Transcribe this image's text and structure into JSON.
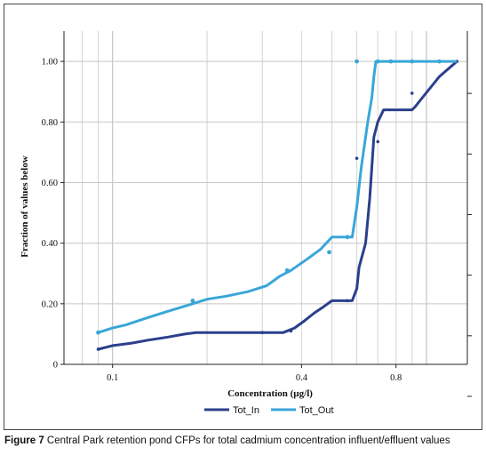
{
  "caption": {
    "label": "Figure 7",
    "text": " Central Park retention pond CFPs for total cadmium concentration influent/effluent values"
  },
  "chart_data": {
    "type": "line",
    "xlabel": "Concentration (µg/l)",
    "ylabel": "Fraction of values below",
    "x_scale": "log",
    "xlim": [
      0.07,
      1.35
    ],
    "ylim": [
      0,
      1.1
    ],
    "x_ticks": [
      {
        "value": 0.1,
        "label": "0.1"
      },
      {
        "value": 0.4,
        "label": "0.4"
      },
      {
        "value": 0.8,
        "label": "0.8"
      }
    ],
    "y_ticks": [
      {
        "value": 0,
        "label": "0"
      },
      {
        "value": 0.2,
        "label": "0.20"
      },
      {
        "value": 0.4,
        "label": "0.40"
      },
      {
        "value": 0.6,
        "label": "0.60"
      },
      {
        "value": 0.8,
        "label": "0.80"
      },
      {
        "value": 1.0,
        "label": "1.00"
      }
    ],
    "grid": true,
    "legend": "bottom",
    "series": [
      {
        "name": "Tot_In",
        "color": "#2b3f8c",
        "line": [
          [
            0.09,
            0.05
          ],
          [
            0.1,
            0.062
          ],
          [
            0.115,
            0.07
          ],
          [
            0.13,
            0.08
          ],
          [
            0.15,
            0.09
          ],
          [
            0.17,
            0.1
          ],
          [
            0.185,
            0.105
          ],
          [
            0.25,
            0.105
          ],
          [
            0.3,
            0.105
          ],
          [
            0.35,
            0.105
          ],
          [
            0.38,
            0.12
          ],
          [
            0.41,
            0.145
          ],
          [
            0.44,
            0.17
          ],
          [
            0.47,
            0.19
          ],
          [
            0.5,
            0.21
          ],
          [
            0.58,
            0.21
          ],
          [
            0.6,
            0.25
          ],
          [
            0.61,
            0.32
          ],
          [
            0.64,
            0.4
          ],
          [
            0.66,
            0.55
          ],
          [
            0.67,
            0.65
          ],
          [
            0.68,
            0.75
          ],
          [
            0.7,
            0.8
          ],
          [
            0.73,
            0.84
          ],
          [
            0.9,
            0.84
          ],
          [
            0.92,
            0.85
          ],
          [
            0.97,
            0.88
          ],
          [
            1.1,
            0.95
          ],
          [
            1.25,
            1.0
          ]
        ],
        "points": [
          [
            0.09,
            0.05
          ],
          [
            0.3,
            0.105
          ],
          [
            0.37,
            0.11
          ],
          [
            0.6,
            0.68
          ],
          [
            0.7,
            0.735
          ],
          [
            0.9,
            0.895
          ],
          [
            1.25,
            1.0
          ],
          [
            0.56,
            0.21
          ]
        ]
      },
      {
        "name": "Tot_Out",
        "color": "#3aa6d8",
        "line": [
          [
            0.09,
            0.105
          ],
          [
            0.1,
            0.12
          ],
          [
            0.11,
            0.13
          ],
          [
            0.13,
            0.155
          ],
          [
            0.15,
            0.175
          ],
          [
            0.18,
            0.2
          ],
          [
            0.2,
            0.215
          ],
          [
            0.23,
            0.225
          ],
          [
            0.27,
            0.24
          ],
          [
            0.31,
            0.26
          ],
          [
            0.34,
            0.29
          ],
          [
            0.37,
            0.31
          ],
          [
            0.42,
            0.35
          ],
          [
            0.46,
            0.38
          ],
          [
            0.5,
            0.42
          ],
          [
            0.58,
            0.42
          ],
          [
            0.6,
            0.52
          ],
          [
            0.62,
            0.65
          ],
          [
            0.65,
            0.8
          ],
          [
            0.67,
            0.88
          ],
          [
            0.68,
            0.95
          ],
          [
            0.69,
            1.0
          ],
          [
            1.25,
            1.0
          ]
        ],
        "points": [
          [
            0.09,
            0.105
          ],
          [
            0.18,
            0.21
          ],
          [
            0.36,
            0.31
          ],
          [
            0.49,
            0.37
          ],
          [
            0.56,
            0.42
          ],
          [
            0.6,
            1.0
          ],
          [
            0.7,
            1.0
          ],
          [
            0.77,
            1.0
          ],
          [
            0.9,
            1.0
          ],
          [
            1.1,
            1.0
          ]
        ]
      }
    ]
  }
}
